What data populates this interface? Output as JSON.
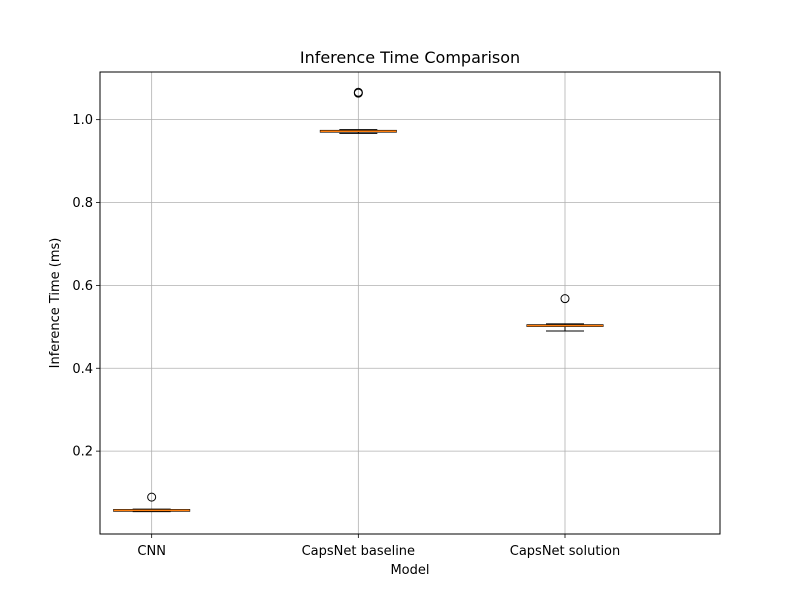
{
  "chart_data": {
    "type": "box",
    "title": "Inference Time Comparison",
    "xlabel": "Model",
    "ylabel": "Inference Time (ms)",
    "categories": [
      "CNN",
      "CapsNet baseline",
      "CapsNet solution"
    ],
    "ylim": [
      0.0,
      1.115
    ],
    "yticks": [
      0.2,
      0.4,
      0.6,
      0.8,
      1.0
    ],
    "ytick_labels": [
      "0.2",
      "0.4",
      "0.6",
      "0.8",
      "1.0"
    ],
    "grid": true,
    "boxes": [
      {
        "category": "CNN",
        "whisker_low": 0.054,
        "q1": 0.055,
        "median": 0.057,
        "q3": 0.059,
        "whisker_high": 0.06,
        "outliers": [
          0.089
        ]
      },
      {
        "category": "CapsNet baseline",
        "whisker_low": 0.967,
        "q1": 0.97,
        "median": 0.972,
        "q3": 0.974,
        "whisker_high": 0.976,
        "outliers": [
          1.064,
          1.066
        ]
      },
      {
        "category": "CapsNet solution",
        "whisker_low": 0.49,
        "q1": 0.501,
        "median": 0.503,
        "q3": 0.505,
        "whisker_high": 0.507,
        "outliers": [
          0.568
        ]
      }
    ],
    "colors": {
      "box_edge": "#000000",
      "median": "#ff7f0e",
      "grid": "#b0b0b0",
      "outlier_edge": "#000000"
    }
  }
}
